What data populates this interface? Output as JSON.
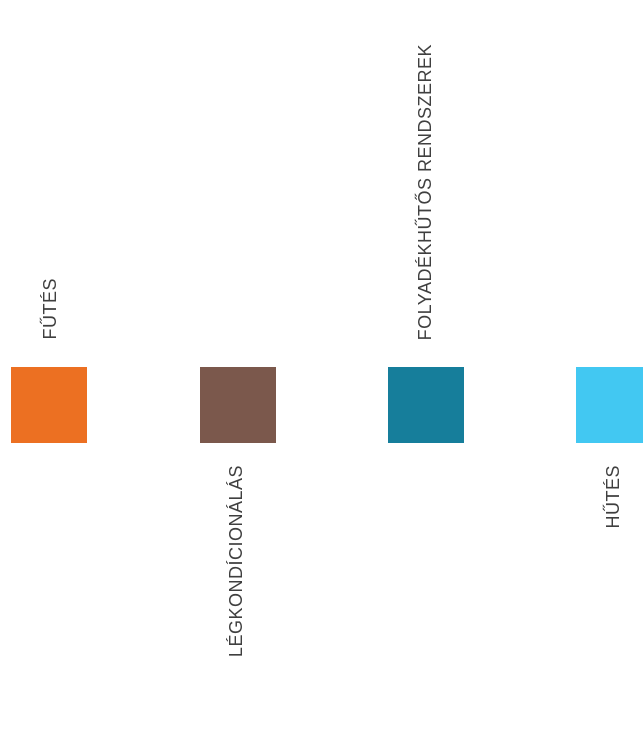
{
  "items": [
    {
      "label": "FŰTÉS",
      "color": "#EC7022"
    },
    {
      "label": "LÉGKONDÍCIONÁLÁS",
      "color": "#7B584C"
    },
    {
      "label": "FOLYADÉKHŰTŐS RENDSZEREK",
      "color": "#167E9B"
    },
    {
      "label": "HŰTÉS",
      "color": "#42C8F2"
    }
  ]
}
